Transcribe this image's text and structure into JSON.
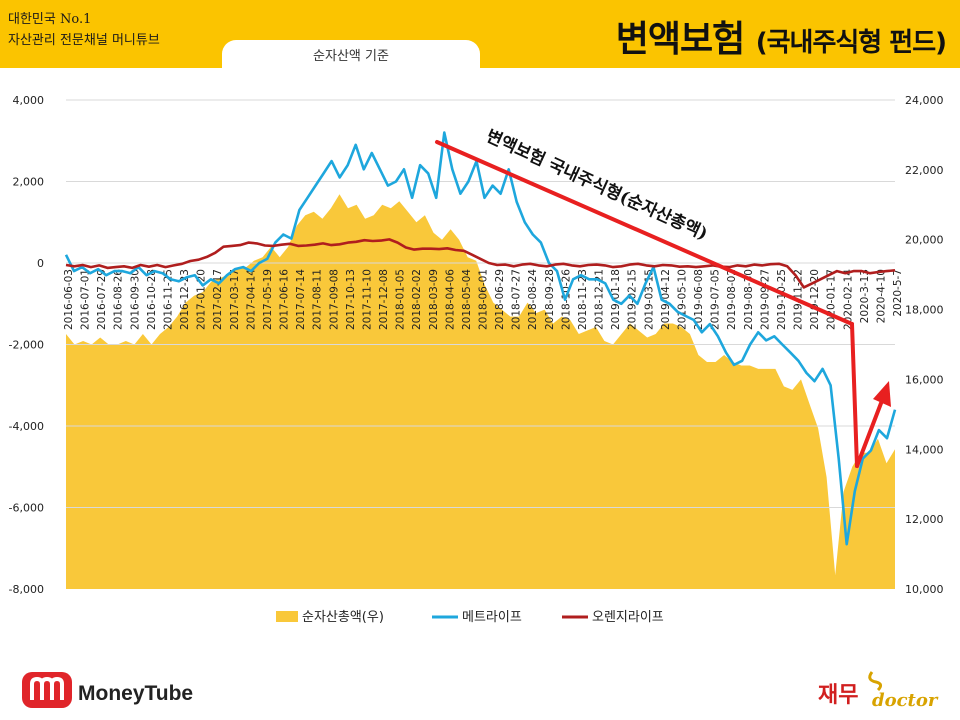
{
  "header": {
    "brand_line1": "대한민국 No.1",
    "brand_line2": "자산관리 전문채널 머니튜브",
    "title_main": "변액보험",
    "title_sub": "(국내주식형 펀드)",
    "tab_label": "순자산액 기준"
  },
  "annotation": "변액보험 국내주식형(순자산총액)",
  "logos": {
    "left_text": "MoneyTube",
    "right_korean": "재무",
    "right_english": "doctor"
  },
  "colors": {
    "header": "#fbc400",
    "area": "#f9c83a",
    "blue": "#1ea7dd",
    "red": "#b01e1e",
    "arrow": "#e82020"
  },
  "chart_data": {
    "type": "line",
    "x_ticks": [
      "2016-06-03",
      "2016-07-01",
      "2016-07-29",
      "2016-08-26",
      "2016-09-30",
      "2016-10-28",
      "2016-11-25",
      "2016-12-23",
      "2017-01-20",
      "2017-02-17",
      "2017-03-17",
      "2017-04-14",
      "2017-05-19",
      "2017-06-16",
      "2017-07-14",
      "2017-08-11",
      "2017-09-08",
      "2017-10-13",
      "2017-11-10",
      "2017-12-08",
      "2018-01-05",
      "2018-02-02",
      "2018-03-09",
      "2018-04-06",
      "2018-05-04",
      "2018-06-01",
      "2018-06-29",
      "2018-07-27",
      "2018-08-24",
      "2018-09-28",
      "2018-10-26",
      "2018-11-23",
      "2018-12-21",
      "2019-01-18",
      "2019-02-15",
      "2019-03-15",
      "2019-04-12",
      "2019-05-10",
      "2019-06-08",
      "2019-07-05",
      "2019-08-02",
      "2019-08-30",
      "2019-09-27",
      "2019-10-25",
      "2019-11-22",
      "2019-12-20",
      "2020-01-17",
      "2020-02-14",
      "2020-3-13",
      "2020-4-10",
      "2020-5-7"
    ],
    "left_axis": {
      "ylim": [
        -8000,
        4000
      ],
      "ticks": [
        "4,000",
        "2,000",
        "0",
        "-2,000",
        "-4,000",
        "-6,000",
        "-8,000"
      ]
    },
    "right_axis": {
      "ylim": [
        10000,
        24000
      ],
      "ticks": [
        "24,000",
        "22,000",
        "20,000",
        "18,000",
        "16,000",
        "14,000",
        "12,000",
        "10,000"
      ]
    },
    "series": [
      {
        "name": "순자산총액(우)",
        "axis": "right",
        "type": "area",
        "values": [
          17300,
          17000,
          17100,
          17000,
          17200,
          17000,
          17000,
          17100,
          17000,
          17300,
          17000,
          17300,
          17500,
          17800,
          18200,
          18400,
          18500,
          18800,
          18900,
          19000,
          19200,
          19200,
          19400,
          19500,
          19800,
          19500,
          19800,
          20400,
          20700,
          20800,
          20600,
          20900,
          21300,
          20900,
          21000,
          20600,
          20700,
          21000,
          20900,
          21100,
          20800,
          20500,
          20700,
          20200,
          20000,
          20300,
          20000,
          19500,
          19400,
          18700,
          18200,
          18000,
          17800,
          17800,
          18200,
          17900,
          18000,
          17600,
          17800,
          17700,
          17300,
          17400,
          17500,
          17100,
          17000,
          17300,
          17600,
          17400,
          17200,
          17300,
          17600,
          17600,
          17500,
          17300,
          16700,
          16500,
          16500,
          16700,
          16500,
          16400,
          16400,
          16300,
          16300,
          16300,
          15800,
          15700,
          16000,
          15300,
          14600,
          13200,
          10400,
          12800,
          13500,
          13900,
          13900,
          14300,
          13600,
          14000
        ]
      },
      {
        "name": "메트라이프",
        "axis": "left",
        "type": "line",
        "values": [
          200,
          -200,
          -100,
          -250,
          -150,
          -300,
          -200,
          -200,
          -250,
          -100,
          -300,
          -200,
          -250,
          -400,
          -450,
          -350,
          -300,
          -550,
          -400,
          -500,
          -300,
          -150,
          -100,
          -200,
          0,
          100,
          500,
          700,
          600,
          1300,
          1600,
          1900,
          2200,
          2500,
          2100,
          2400,
          2900,
          2300,
          2700,
          2300,
          1900,
          2000,
          2300,
          1600,
          2400,
          2200,
          1600,
          3200,
          2300,
          1700,
          2000,
          2500,
          1600,
          1900,
          1700,
          2300,
          1500,
          1000,
          700,
          500,
          0,
          -200,
          -900,
          -400,
          -300,
          -400,
          -400,
          -500,
          -900,
          -1000,
          -800,
          -1000,
          -500,
          -100,
          -900,
          -1000,
          -1200,
          -1300,
          -1400,
          -1700,
          -1500,
          -1800,
          -2200,
          -2500,
          -2400,
          -2000,
          -1700,
          -1900,
          -1800,
          -2000,
          -2200,
          -2400,
          -2700,
          -2900,
          -2600,
          -3000,
          -4800,
          -6900,
          -5600,
          -4800,
          -4600,
          -4100,
          -4300,
          -3600
        ]
      },
      {
        "name": "오렌지라이프",
        "axis": "left",
        "type": "line",
        "values": [
          -50,
          -80,
          -50,
          -100,
          -60,
          -120,
          -100,
          -80,
          -120,
          -50,
          -90,
          -50,
          -100,
          -60,
          -20,
          50,
          80,
          150,
          250,
          400,
          420,
          440,
          500,
          480,
          430,
          420,
          450,
          470,
          420,
          430,
          450,
          480,
          440,
          460,
          500,
          520,
          560,
          540,
          550,
          580,
          500,
          380,
          330,
          350,
          350,
          340,
          360,
          320,
          300,
          200,
          100,
          0,
          -50,
          -40,
          -80,
          -40,
          -20,
          -60,
          -80,
          -40,
          -20,
          -60,
          -80,
          -50,
          -40,
          -60,
          -100,
          -80,
          -40,
          -20,
          -60,
          -80,
          -50,
          -60,
          -90,
          -80,
          -100,
          -80,
          -60,
          -90,
          -100,
          -60,
          -80,
          -40,
          -60,
          -30,
          -20,
          -80,
          -300,
          -600,
          -500,
          -400,
          -300,
          -200,
          -250,
          -200,
          -200,
          -250,
          -220,
          -200,
          -180
        ]
      }
    ],
    "legend_position": "bottom"
  }
}
